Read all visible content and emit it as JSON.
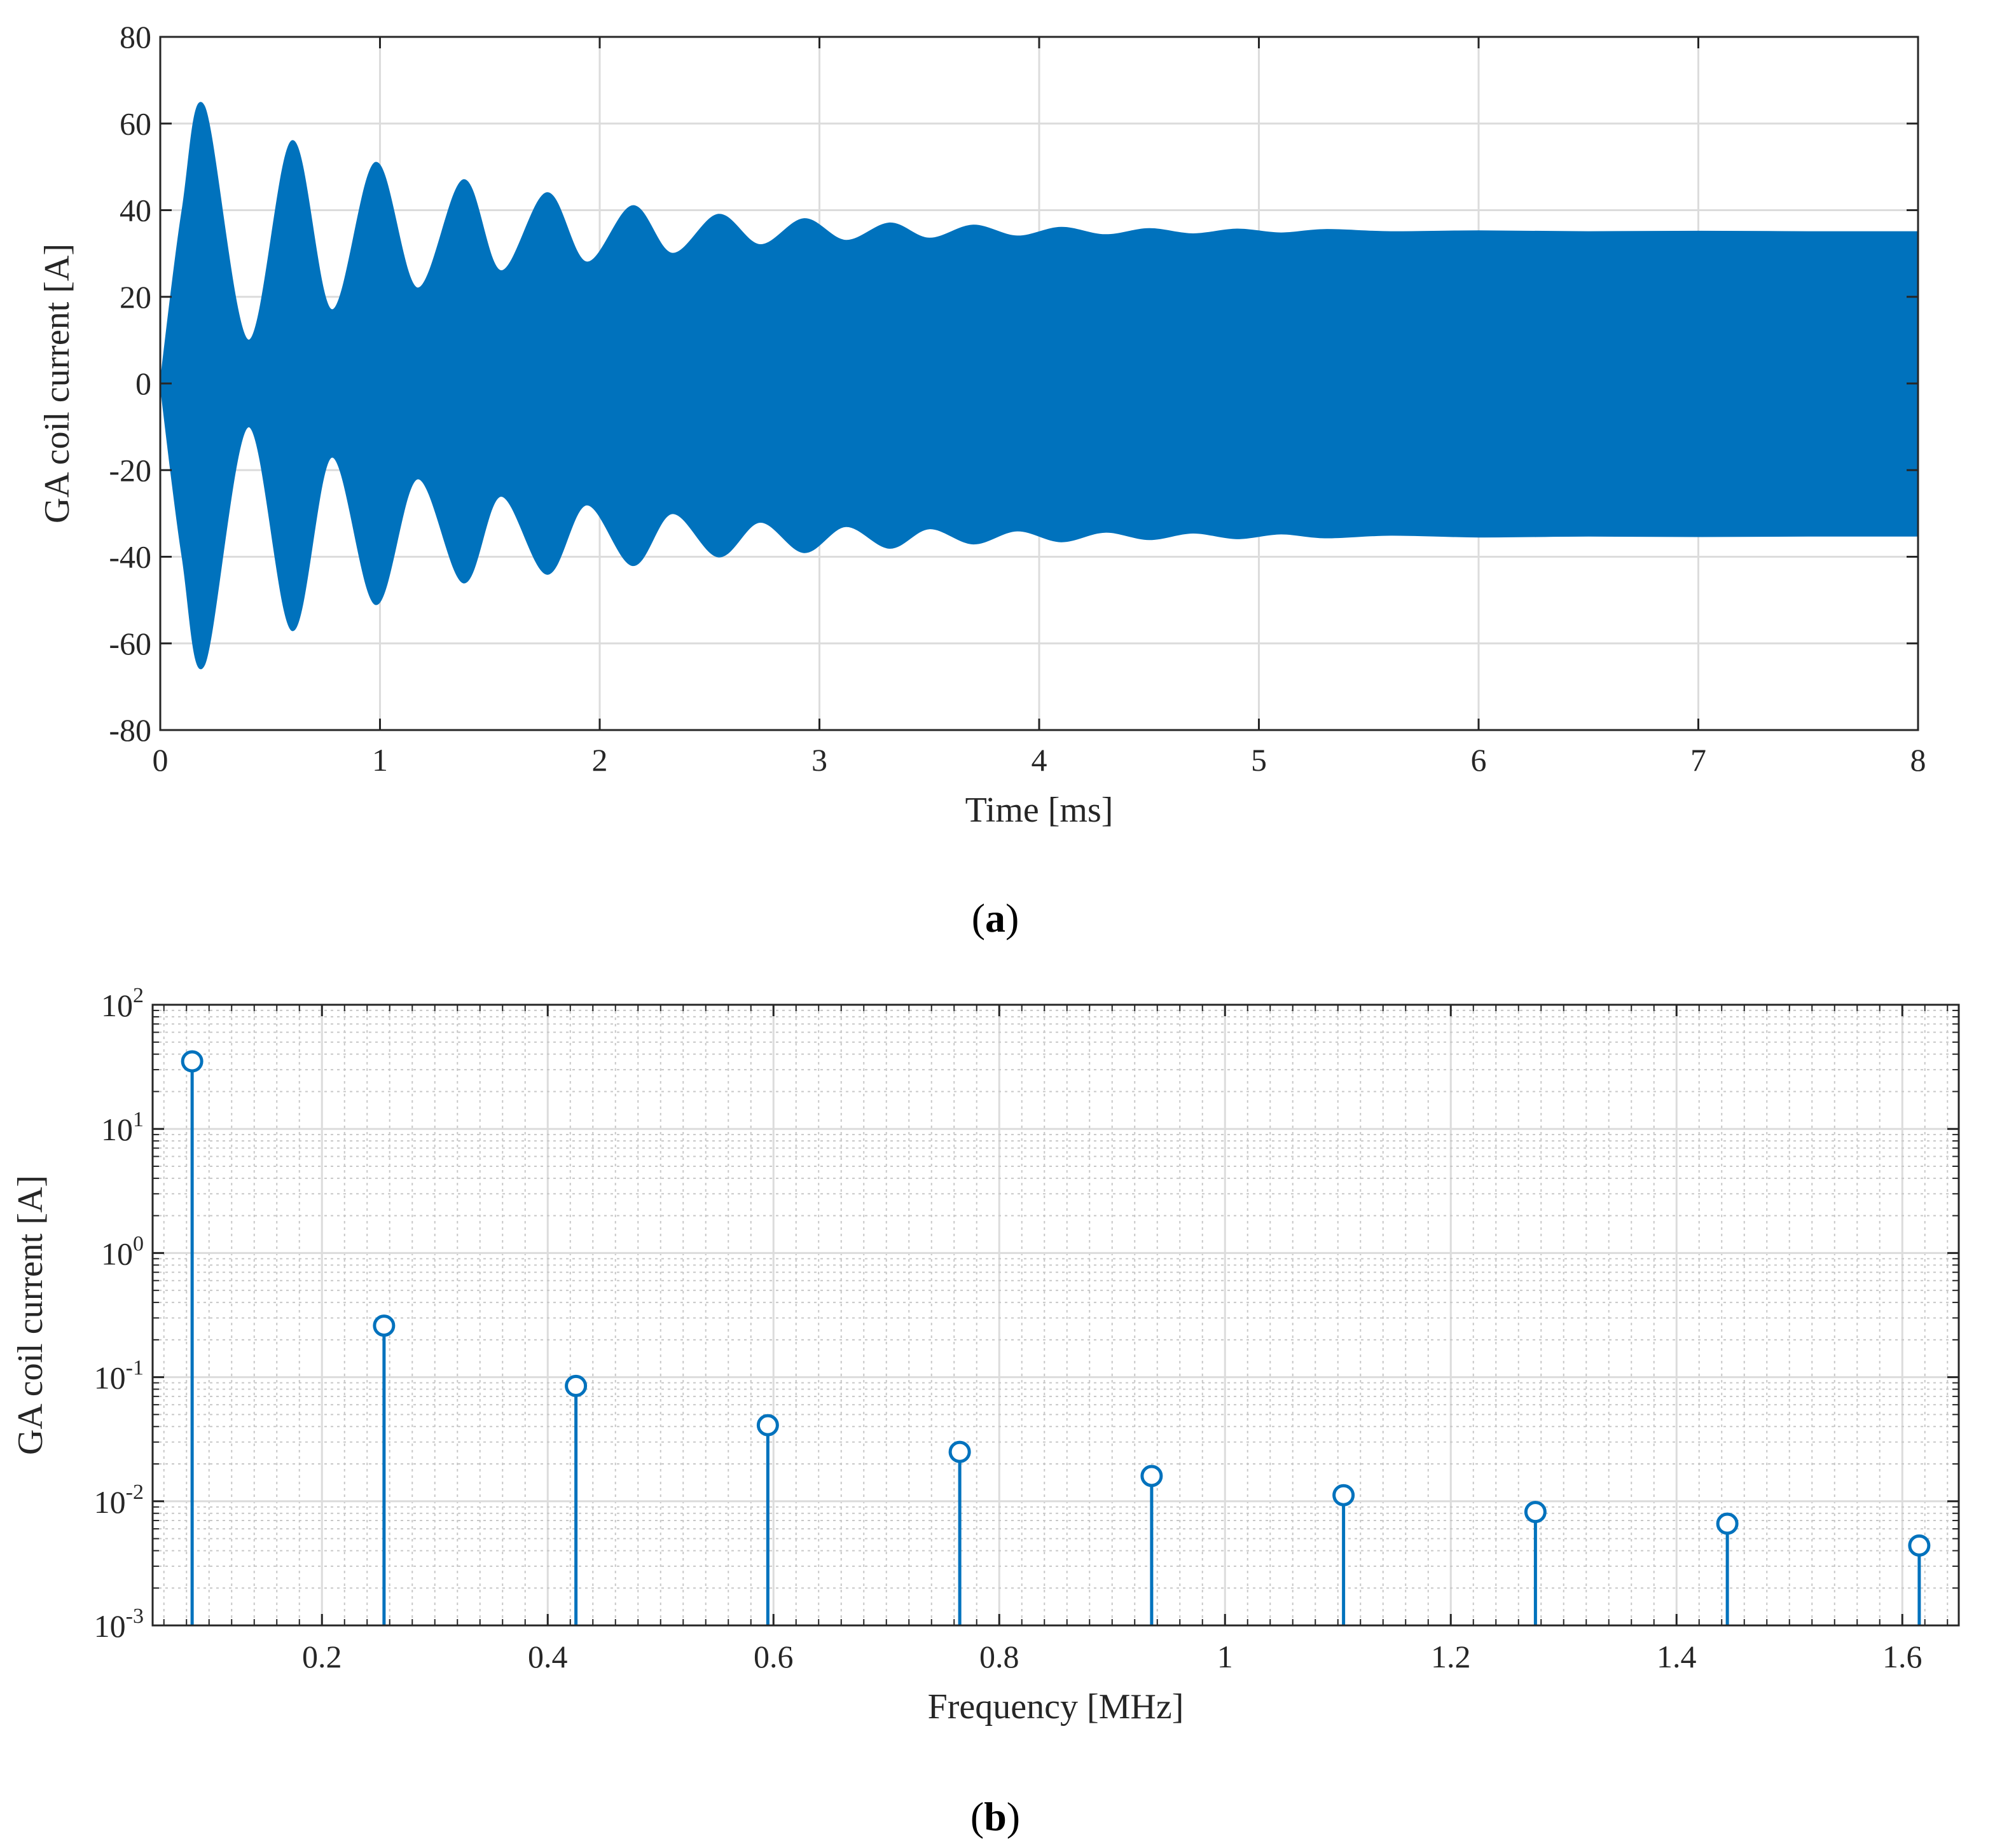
{
  "chart_data": [
    {
      "panel": "a",
      "type": "area",
      "caption_letter": "a",
      "xlabel": "Time [ms]",
      "ylabel": "GA coil current [A]",
      "xlim": [
        0,
        8
      ],
      "ylim": [
        -80,
        80
      ],
      "xticks": [
        0,
        1,
        2,
        3,
        4,
        5,
        6,
        7,
        8
      ],
      "yticks": [
        -80,
        -60,
        -40,
        -20,
        0,
        20,
        40,
        60,
        80
      ],
      "grid": true,
      "color": "#0072BD",
      "description": "Rapidly oscillating current; filled region between upper and lower envelope",
      "envelope_upper": {
        "x": [
          0,
          0.1,
          0.2,
          0.4,
          0.6,
          0.78,
          0.98,
          1.17,
          1.38,
          1.55,
          1.76,
          1.94,
          2.15,
          2.33,
          2.54,
          2.73,
          2.93,
          3.12,
          3.32,
          3.5,
          3.7,
          3.9,
          4.1,
          4.3,
          4.5,
          4.7,
          4.9,
          5.1,
          5.3,
          5.6,
          6.0,
          6.5,
          7.0,
          7.5,
          8.0
        ],
        "y": [
          0,
          40,
          64,
          10,
          56,
          17,
          51,
          22,
          47,
          26,
          44,
          28,
          41,
          30,
          39,
          32,
          38,
          33,
          37,
          33.5,
          36.5,
          34,
          36,
          34.3,
          35.7,
          34.5,
          35.6,
          34.7,
          35.5,
          35,
          35.2,
          35,
          35.1,
          35,
          35
        ]
      },
      "envelope_lower": {
        "x": [
          0,
          0.1,
          0.2,
          0.4,
          0.6,
          0.78,
          0.98,
          1.17,
          1.38,
          1.55,
          1.76,
          1.94,
          2.15,
          2.33,
          2.54,
          2.73,
          2.93,
          3.12,
          3.32,
          3.5,
          3.7,
          3.9,
          4.1,
          4.3,
          4.5,
          4.7,
          4.9,
          5.1,
          5.3,
          5.6,
          6.0,
          6.5,
          7.0,
          7.5,
          8.0
        ],
        "y": [
          0,
          -40,
          -65,
          -10,
          -57,
          -17,
          -51,
          -22,
          -46,
          -26,
          -44,
          -28,
          -42,
          -30,
          -40,
          -32,
          -39,
          -33,
          -38,
          -33.5,
          -37,
          -34,
          -36.5,
          -34.3,
          -36,
          -34.5,
          -35.8,
          -34.7,
          -35.6,
          -35,
          -35.4,
          -35.2,
          -35.3,
          -35.2,
          -35.2
        ]
      }
    },
    {
      "panel": "b",
      "type": "scatter",
      "style": "stem",
      "caption_letter": "b",
      "xlabel": "Frequency [MHz]",
      "ylabel": "GA coil current [A]",
      "xlim": [
        0.05,
        1.65
      ],
      "ylim": [
        0.001,
        100
      ],
      "yscale": "log",
      "xticks": [
        0.2,
        0.4,
        0.6,
        0.8,
        1,
        1.2,
        1.4,
        1.6
      ],
      "xtick_labels": [
        "0.2",
        "0.4",
        "0.6",
        "0.8",
        "1",
        "1.2",
        "1.4",
        "1.6"
      ],
      "ytick_bases": [
        "10",
        "10",
        "10",
        "10",
        "10",
        "10"
      ],
      "ytick_exponents": [
        "-3",
        "-2",
        "-1",
        "0",
        "1",
        "2"
      ],
      "yticks": [
        0.001,
        0.01,
        0.1,
        1,
        10,
        100
      ],
      "grid": true,
      "minor_grid": true,
      "color": "#0072BD",
      "x": [
        0.085,
        0.255,
        0.425,
        0.595,
        0.765,
        0.935,
        1.105,
        1.275,
        1.445,
        1.615
      ],
      "y": [
        35,
        0.26,
        0.085,
        0.041,
        0.025,
        0.016,
        0.0112,
        0.0082,
        0.0066,
        0.0044
      ]
    }
  ]
}
